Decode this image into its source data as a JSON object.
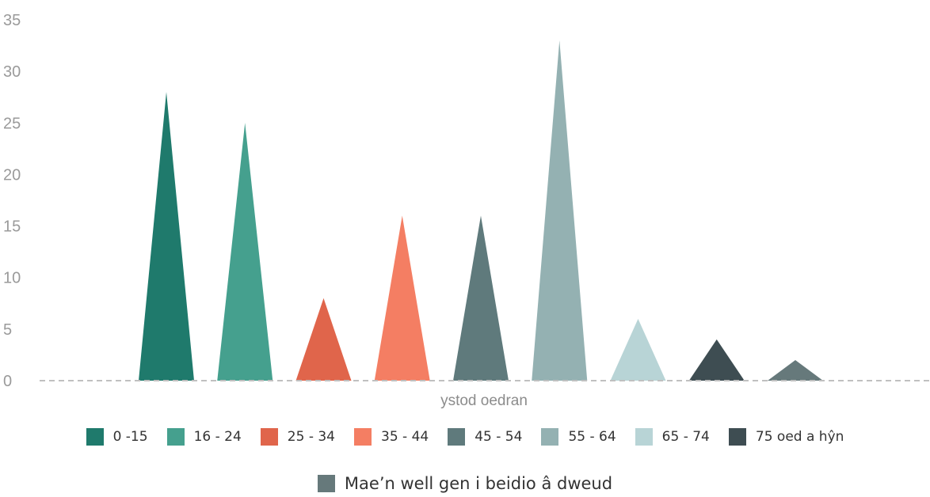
{
  "chart_data": {
    "type": "bar",
    "shape": "triangle",
    "title": "",
    "xlabel": "ystod oedran",
    "ylabel": "",
    "ylim": [
      0,
      35
    ],
    "yticks": [
      0,
      5,
      10,
      15,
      20,
      25,
      30,
      35
    ],
    "grid": false,
    "baseline_style": "dashed",
    "legend_position": "bottom",
    "categories": [
      "0 -15",
      "16 - 24",
      "25 - 34",
      "35 - 44",
      "45 - 54",
      "55 - 64",
      "65 - 74",
      "75 oed a hŷn",
      "Mae’n well gen i beidio â dweud"
    ],
    "values": [
      28,
      25,
      8,
      16,
      16,
      33,
      6,
      4,
      2
    ],
    "colors": [
      "#1f7a6c",
      "#45a08e",
      "#e0654b",
      "#f47e63",
      "#5f7a7c",
      "#94b1b2",
      "#b8d4d6",
      "#3e4d52",
      "#66797b"
    ]
  }
}
